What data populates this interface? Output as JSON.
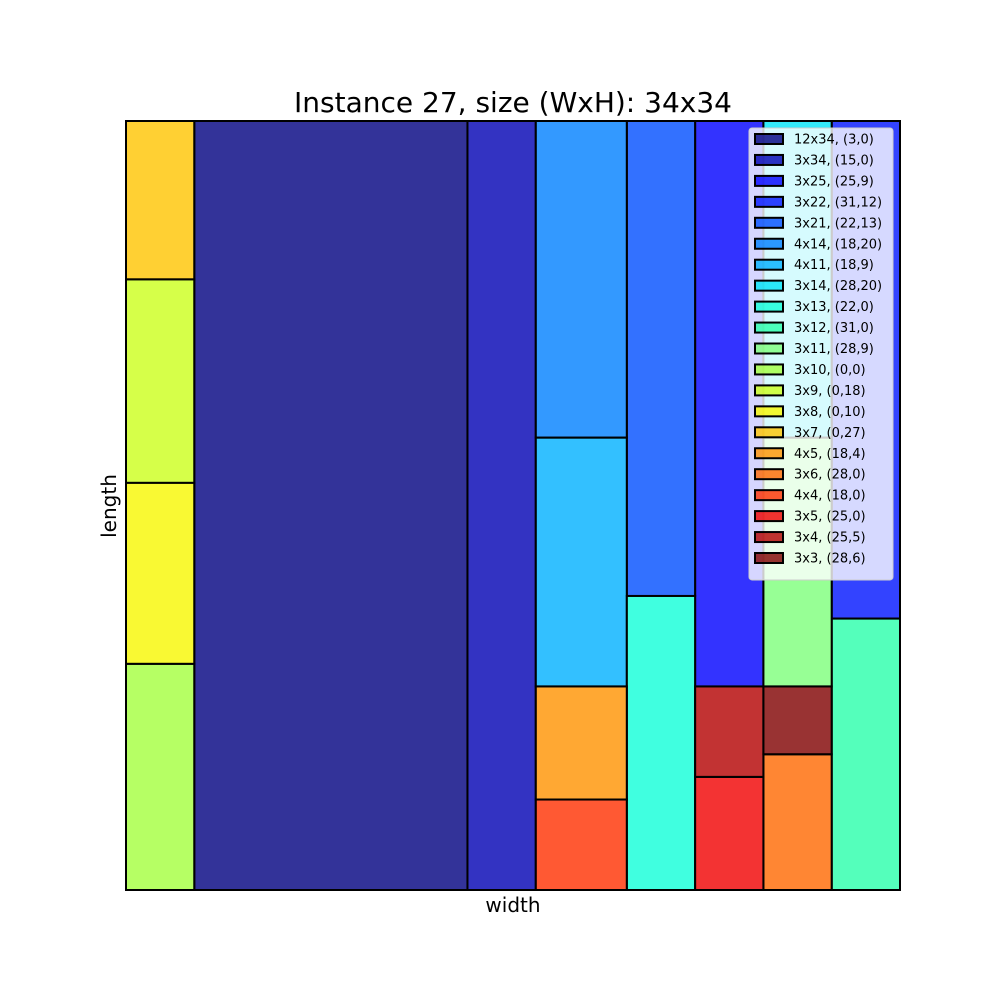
{
  "chart_data": {
    "type": "rectangle-packing",
    "title": "Instance 27, size (WxH): 34x34",
    "xlabel": "width",
    "ylabel": "length",
    "container": {
      "width": 34,
      "height": 34
    },
    "legend_location": "upper-right",
    "rectangles": [
      {
        "label": "12x34, (3,0)",
        "w": 12,
        "h": 34,
        "x": 3,
        "y": 0,
        "color": "#000080"
      },
      {
        "label": "3x34, (15,0)",
        "w": 3,
        "h": 34,
        "x": 15,
        "y": 0,
        "color": "#0000b3"
      },
      {
        "label": "3x25, (25,9)",
        "w": 3,
        "h": 25,
        "x": 25,
        "y": 9,
        "color": "#0000ff"
      },
      {
        "label": "3x22, (31,12)",
        "w": 3,
        "h": 22,
        "x": 31,
        "y": 12,
        "color": "#0014ff"
      },
      {
        "label": "3x21, (22,13)",
        "w": 3,
        "h": 21,
        "x": 22,
        "y": 13,
        "color": "#004dff"
      },
      {
        "label": "4x14, (18,20)",
        "w": 4,
        "h": 14,
        "x": 18,
        "y": 20,
        "color": "#0080ff"
      },
      {
        "label": "4x11, (18,9)",
        "w": 4,
        "h": 11,
        "x": 18,
        "y": 9,
        "color": "#00b0ff"
      },
      {
        "label": "3x14, (28,20)",
        "w": 3,
        "h": 14,
        "x": 28,
        "y": 20,
        "color": "#00e4f8"
      },
      {
        "label": "3x13, (22,0)",
        "w": 3,
        "h": 13,
        "x": 22,
        "y": 0,
        "color": "#10ffd8"
      },
      {
        "label": "3x12, (31,0)",
        "w": 3,
        "h": 12,
        "x": 31,
        "y": 0,
        "color": "#29ffaa"
      },
      {
        "label": "3x11, (28,9)",
        "w": 3,
        "h": 11,
        "x": 28,
        "y": 9,
        "color": "#7dff7a"
      },
      {
        "label": "3x10, (0,0)",
        "w": 3,
        "h": 10,
        "x": 0,
        "y": 0,
        "color": "#a4ff3d"
      },
      {
        "label": "3x9, (0,18)",
        "w": 3,
        "h": 9,
        "x": 0,
        "y": 18,
        "color": "#ccff1b"
      },
      {
        "label": "3x8, (0,10)",
        "w": 3,
        "h": 8,
        "x": 0,
        "y": 10,
        "color": "#f7f700"
      },
      {
        "label": "3x7, (0,27)",
        "w": 3,
        "h": 7,
        "x": 0,
        "y": 27,
        "color": "#ffc400"
      },
      {
        "label": "4x5, (18,4)",
        "w": 4,
        "h": 5,
        "x": 18,
        "y": 4,
        "color": "#ff9200"
      },
      {
        "label": "3x6, (28,0)",
        "w": 3,
        "h": 6,
        "x": 28,
        "y": 0,
        "color": "#ff6800"
      },
      {
        "label": "4x4, (18,0)",
        "w": 4,
        "h": 4,
        "x": 18,
        "y": 0,
        "color": "#ff3000"
      },
      {
        "label": "3x5, (25,0)",
        "w": 3,
        "h": 5,
        "x": 25,
        "y": 0,
        "color": "#f00000"
      },
      {
        "label": "3x4, (25,5)",
        "w": 3,
        "h": 4,
        "x": 25,
        "y": 5,
        "color": "#b30000"
      },
      {
        "label": "3x3, (28,6)",
        "w": 3,
        "h": 3,
        "x": 28,
        "y": 6,
        "color": "#800000"
      }
    ]
  }
}
